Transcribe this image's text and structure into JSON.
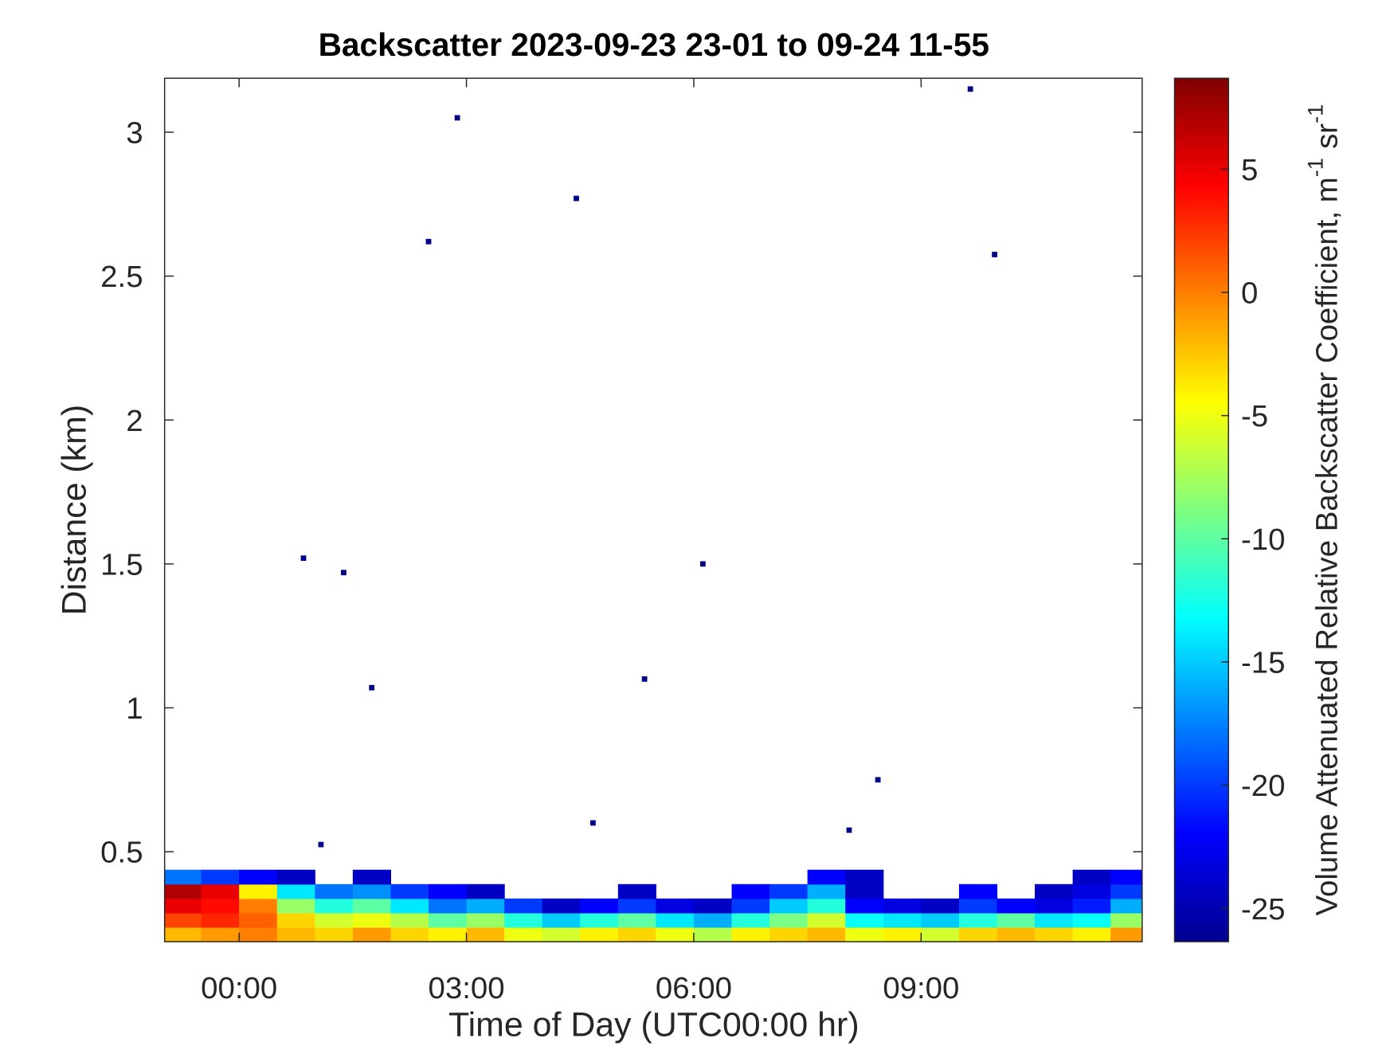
{
  "chart_data": {
    "type": "heatmap",
    "title": "Backscatter 2023-09-23 23-01 to 09-24 11-55",
    "xlabel": "Time of Day (UTC00:00 hr)",
    "ylabel": "Distance (km)",
    "colorbar_label": [
      "Volume Attenuated Relative Backscatter Coefficient, m",
      "-1",
      "sr",
      "-1"
    ],
    "colormap": "jet",
    "xlim": [
      -0.983,
      11.917
    ],
    "ylim": [
      0.1875,
      3.1875
    ],
    "clim": [
      -26.35,
      8.69
    ],
    "xticks": [
      {
        "value": 0,
        "label": "00:00"
      },
      {
        "value": 3,
        "label": "03:00"
      },
      {
        "value": 6,
        "label": "06:00"
      },
      {
        "value": 9,
        "label": "09:00"
      }
    ],
    "yticks": [
      0.5,
      1,
      1.5,
      2,
      2.5,
      3
    ],
    "cticks": [
      5,
      0,
      -5,
      -10,
      -15,
      -20,
      -25
    ],
    "x": [
      -0.75,
      -0.25,
      0.25,
      0.75,
      1.25,
      1.75,
      2.25,
      2.75,
      3.25,
      3.75,
      4.25,
      4.75,
      5.25,
      5.75,
      6.25,
      6.75,
      7.25,
      7.75,
      8.25,
      8.75,
      9.25,
      9.75,
      10.25,
      10.75,
      11.25,
      11.75
    ],
    "y": [
      0.2125,
      0.2625,
      0.3125,
      0.3625,
      0.4125
    ],
    "z": [
      [
        -2,
        -1,
        0,
        -2,
        -3,
        -1,
        -3,
        -4,
        -2,
        -5,
        -6,
        -4,
        -3,
        -5,
        -7,
        -4,
        -3,
        -2,
        -5,
        -4,
        -6,
        -3,
        -2,
        -3,
        -4,
        -1
      ],
      [
        2,
        3,
        1,
        -3,
        -6,
        -5,
        -7,
        -10,
        -8,
        -12,
        -15,
        -12,
        -10,
        -14,
        -16,
        -12,
        -9,
        -6,
        -13,
        -14,
        -15,
        -12,
        -10,
        -14,
        -13,
        -8
      ],
      [
        5,
        4,
        0,
        -8,
        -12,
        -10,
        -14,
        -18,
        -16,
        -20,
        -24,
        -22,
        -20,
        -23,
        -24,
        -20,
        -15,
        -12,
        -22,
        -23,
        -24,
        -20,
        -22,
        -23,
        -21,
        -16
      ],
      [
        7,
        5,
        -4,
        -14,
        -18,
        -17,
        -20,
        -22,
        -24,
        null,
        null,
        null,
        -24,
        null,
        null,
        -22,
        -20,
        -16,
        -24,
        null,
        null,
        -22,
        null,
        -24,
        -23,
        -20
      ],
      [
        -18,
        -20,
        -22,
        -24,
        null,
        -24,
        null,
        null,
        null,
        null,
        null,
        null,
        null,
        null,
        null,
        null,
        null,
        -22,
        -24,
        null,
        null,
        null,
        null,
        null,
        -24,
        -22
      ]
    ],
    "points": {
      "x": [
        0.85,
        1.08,
        1.38,
        1.75,
        2.5,
        2.88,
        4.45,
        4.67,
        5.35,
        6.12,
        8.05,
        8.43,
        9.65,
        9.97
      ],
      "y": [
        1.52,
        0.525,
        1.47,
        1.07,
        2.62,
        3.05,
        2.77,
        0.6,
        1.1,
        1.5,
        0.575,
        0.75,
        3.15,
        2.575
      ],
      "values": [
        -26,
        -26,
        -26,
        -26,
        -26,
        -26,
        -26,
        -26,
        -26,
        -26,
        -26,
        -26,
        -26,
        -26
      ]
    }
  }
}
